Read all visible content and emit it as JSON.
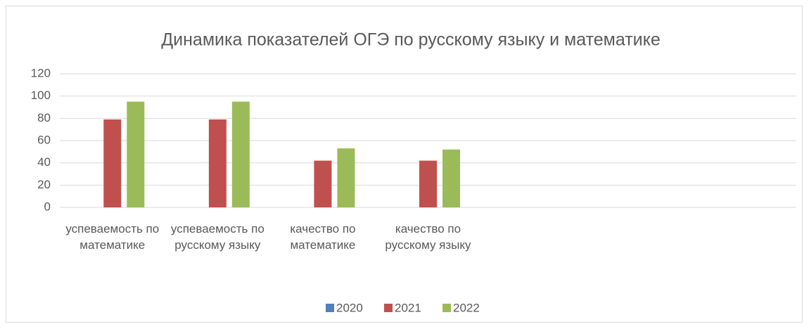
{
  "chart_data": {
    "type": "bar",
    "title": "Динамика показателей ОГЭ по русскому языку и математике",
    "categories": [
      "успеваемость по математике",
      "успеваемость по русскому языку",
      "качество по математике",
      "качество по русскому языку",
      null,
      null,
      null
    ],
    "series": [
      {
        "name": "2020",
        "color": "#4f81bd",
        "values": [
          0,
          0,
          0,
          0,
          null,
          null,
          null
        ]
      },
      {
        "name": "2021",
        "color": "#c0504d",
        "values": [
          79,
          79,
          42,
          42,
          null,
          null,
          null
        ]
      },
      {
        "name": "2022",
        "color": "#9bbb59",
        "values": [
          95,
          95,
          53,
          52,
          null,
          null,
          null
        ]
      }
    ],
    "ylim": [
      0,
      120
    ],
    "yticks": [
      0,
      20,
      40,
      60,
      80,
      100,
      120
    ],
    "grid": true,
    "legend": "bottom"
  }
}
